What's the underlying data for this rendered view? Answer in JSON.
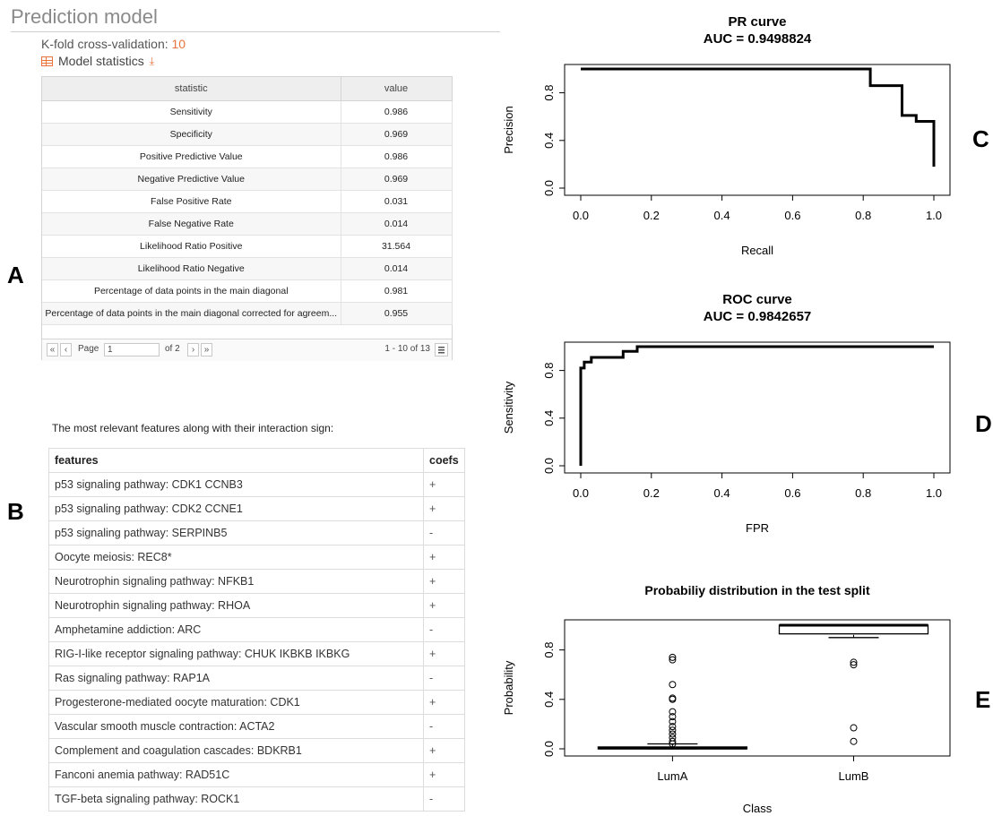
{
  "page_title": "Prediction model",
  "kfold": {
    "label": "K-fold cross-validation:",
    "value": "10"
  },
  "model_stats_label": "Model statistics",
  "panel_letters": [
    "A",
    "B",
    "C",
    "D",
    "E"
  ],
  "stats_table": {
    "headers": [
      "statistic",
      "value"
    ],
    "rows": [
      [
        "Sensitivity",
        "0.986"
      ],
      [
        "Specificity",
        "0.969"
      ],
      [
        "Positive Predictive Value",
        "0.986"
      ],
      [
        "Negative Predictive Value",
        "0.969"
      ],
      [
        "False Positive Rate",
        "0.031"
      ],
      [
        "False Negative Rate",
        "0.014"
      ],
      [
        "Likelihood Ratio Positive",
        "31.564"
      ],
      [
        "Likelihood Ratio Negative",
        "0.014"
      ],
      [
        "Percentage of data points in the main diagonal",
        "0.981"
      ],
      [
        "Percentage of data points in the main diagonal corrected for agreem...",
        "0.955"
      ]
    ],
    "pager": {
      "first": "«",
      "prev": "‹",
      "page_label": "Page",
      "page_value": "1",
      "of_label": "of 2",
      "next": "›",
      "last": "»",
      "range": "1 - 10 of 13"
    }
  },
  "features_intro": "The most relevant features along with their interaction sign:",
  "features_table": {
    "headers": [
      "features",
      "coefs"
    ],
    "rows": [
      [
        "p53 signaling pathway: CDK1 CCNB3",
        "+"
      ],
      [
        "p53 signaling pathway: CDK2 CCNE1",
        "+"
      ],
      [
        "p53 signaling pathway: SERPINB5",
        "-"
      ],
      [
        "Oocyte meiosis: REC8*",
        "+"
      ],
      [
        "Neurotrophin signaling pathway: NFKB1",
        "+"
      ],
      [
        "Neurotrophin signaling pathway: RHOA",
        "+"
      ],
      [
        "Amphetamine addiction: ARC",
        "-"
      ],
      [
        "RIG-I-like receptor signaling pathway: CHUK IKBKB IKBKG",
        "+"
      ],
      [
        "Ras signaling pathway: RAP1A",
        "-"
      ],
      [
        "Progesterone-mediated oocyte maturation: CDK1",
        "+"
      ],
      [
        "Vascular smooth muscle contraction: ACTA2",
        "-"
      ],
      [
        "Complement and coagulation cascades: BDKRB1",
        "+"
      ],
      [
        "Fanconi anemia pathway: RAD51C",
        "+"
      ],
      [
        "TGF-beta signaling pathway: ROCK1",
        "-"
      ]
    ]
  },
  "colors": {
    "accent": "#e8733c",
    "header_bg": "#eeeeee",
    "line": "#000000"
  },
  "chart_data": [
    {
      "type": "line",
      "title": "PR curve",
      "subtitle": "AUC = 0.9498824",
      "xlabel": "Recall",
      "ylabel": "Precision",
      "xlim": [
        0,
        1
      ],
      "ylim": [
        0,
        1
      ],
      "xticks": [
        "0.0",
        "0.2",
        "0.4",
        "0.6",
        "0.8",
        "1.0"
      ],
      "yticks": [
        "0.0",
        "0.4",
        "0.8"
      ],
      "x": [
        0.0,
        0.82,
        0.82,
        0.91,
        0.91,
        0.95,
        0.95,
        1.0,
        1.0
      ],
      "y": [
        1.0,
        1.0,
        0.86,
        0.86,
        0.61,
        0.61,
        0.56,
        0.56,
        0.18
      ]
    },
    {
      "type": "line",
      "title": "ROC curve",
      "subtitle": "AUC = 0.9842657",
      "xlabel": "FPR",
      "ylabel": "Sensitivity",
      "xlim": [
        0,
        1
      ],
      "ylim": [
        0,
        1
      ],
      "xticks": [
        "0.0",
        "0.2",
        "0.4",
        "0.6",
        "0.8",
        "1.0"
      ],
      "yticks": [
        "0.0",
        "0.4",
        "0.8"
      ],
      "x": [
        0.0,
        0.0,
        0.0,
        0.01,
        0.01,
        0.03,
        0.03,
        0.12,
        0.12,
        0.16,
        0.16,
        1.0
      ],
      "y": [
        0.0,
        0.42,
        0.82,
        0.82,
        0.87,
        0.87,
        0.91,
        0.91,
        0.96,
        0.96,
        1.0,
        1.0
      ]
    },
    {
      "type": "box",
      "title": "Probabiliy distribution in the test split",
      "xlabel": "Class",
      "ylabel": "Probability",
      "ylim": [
        0,
        1
      ],
      "yticks": [
        "0.0",
        "0.4",
        "0.8"
      ],
      "categories": [
        "LumA",
        "LumB"
      ],
      "boxes": [
        {
          "whisker_low": 0.0,
          "q1": 0.0,
          "median": 0.005,
          "q3": 0.015,
          "whisker_high": 0.04,
          "outliers": [
            0.74,
            0.72,
            0.52,
            0.41,
            0.4,
            0.3,
            0.26,
            0.22,
            0.18,
            0.15,
            0.12,
            0.09,
            0.06,
            0.04
          ]
        },
        {
          "whisker_low": 0.9,
          "q1": 0.93,
          "median": 1.0,
          "q3": 1.0,
          "whisker_high": 1.0,
          "outliers": [
            0.7,
            0.68,
            0.17,
            0.06
          ]
        }
      ]
    }
  ]
}
